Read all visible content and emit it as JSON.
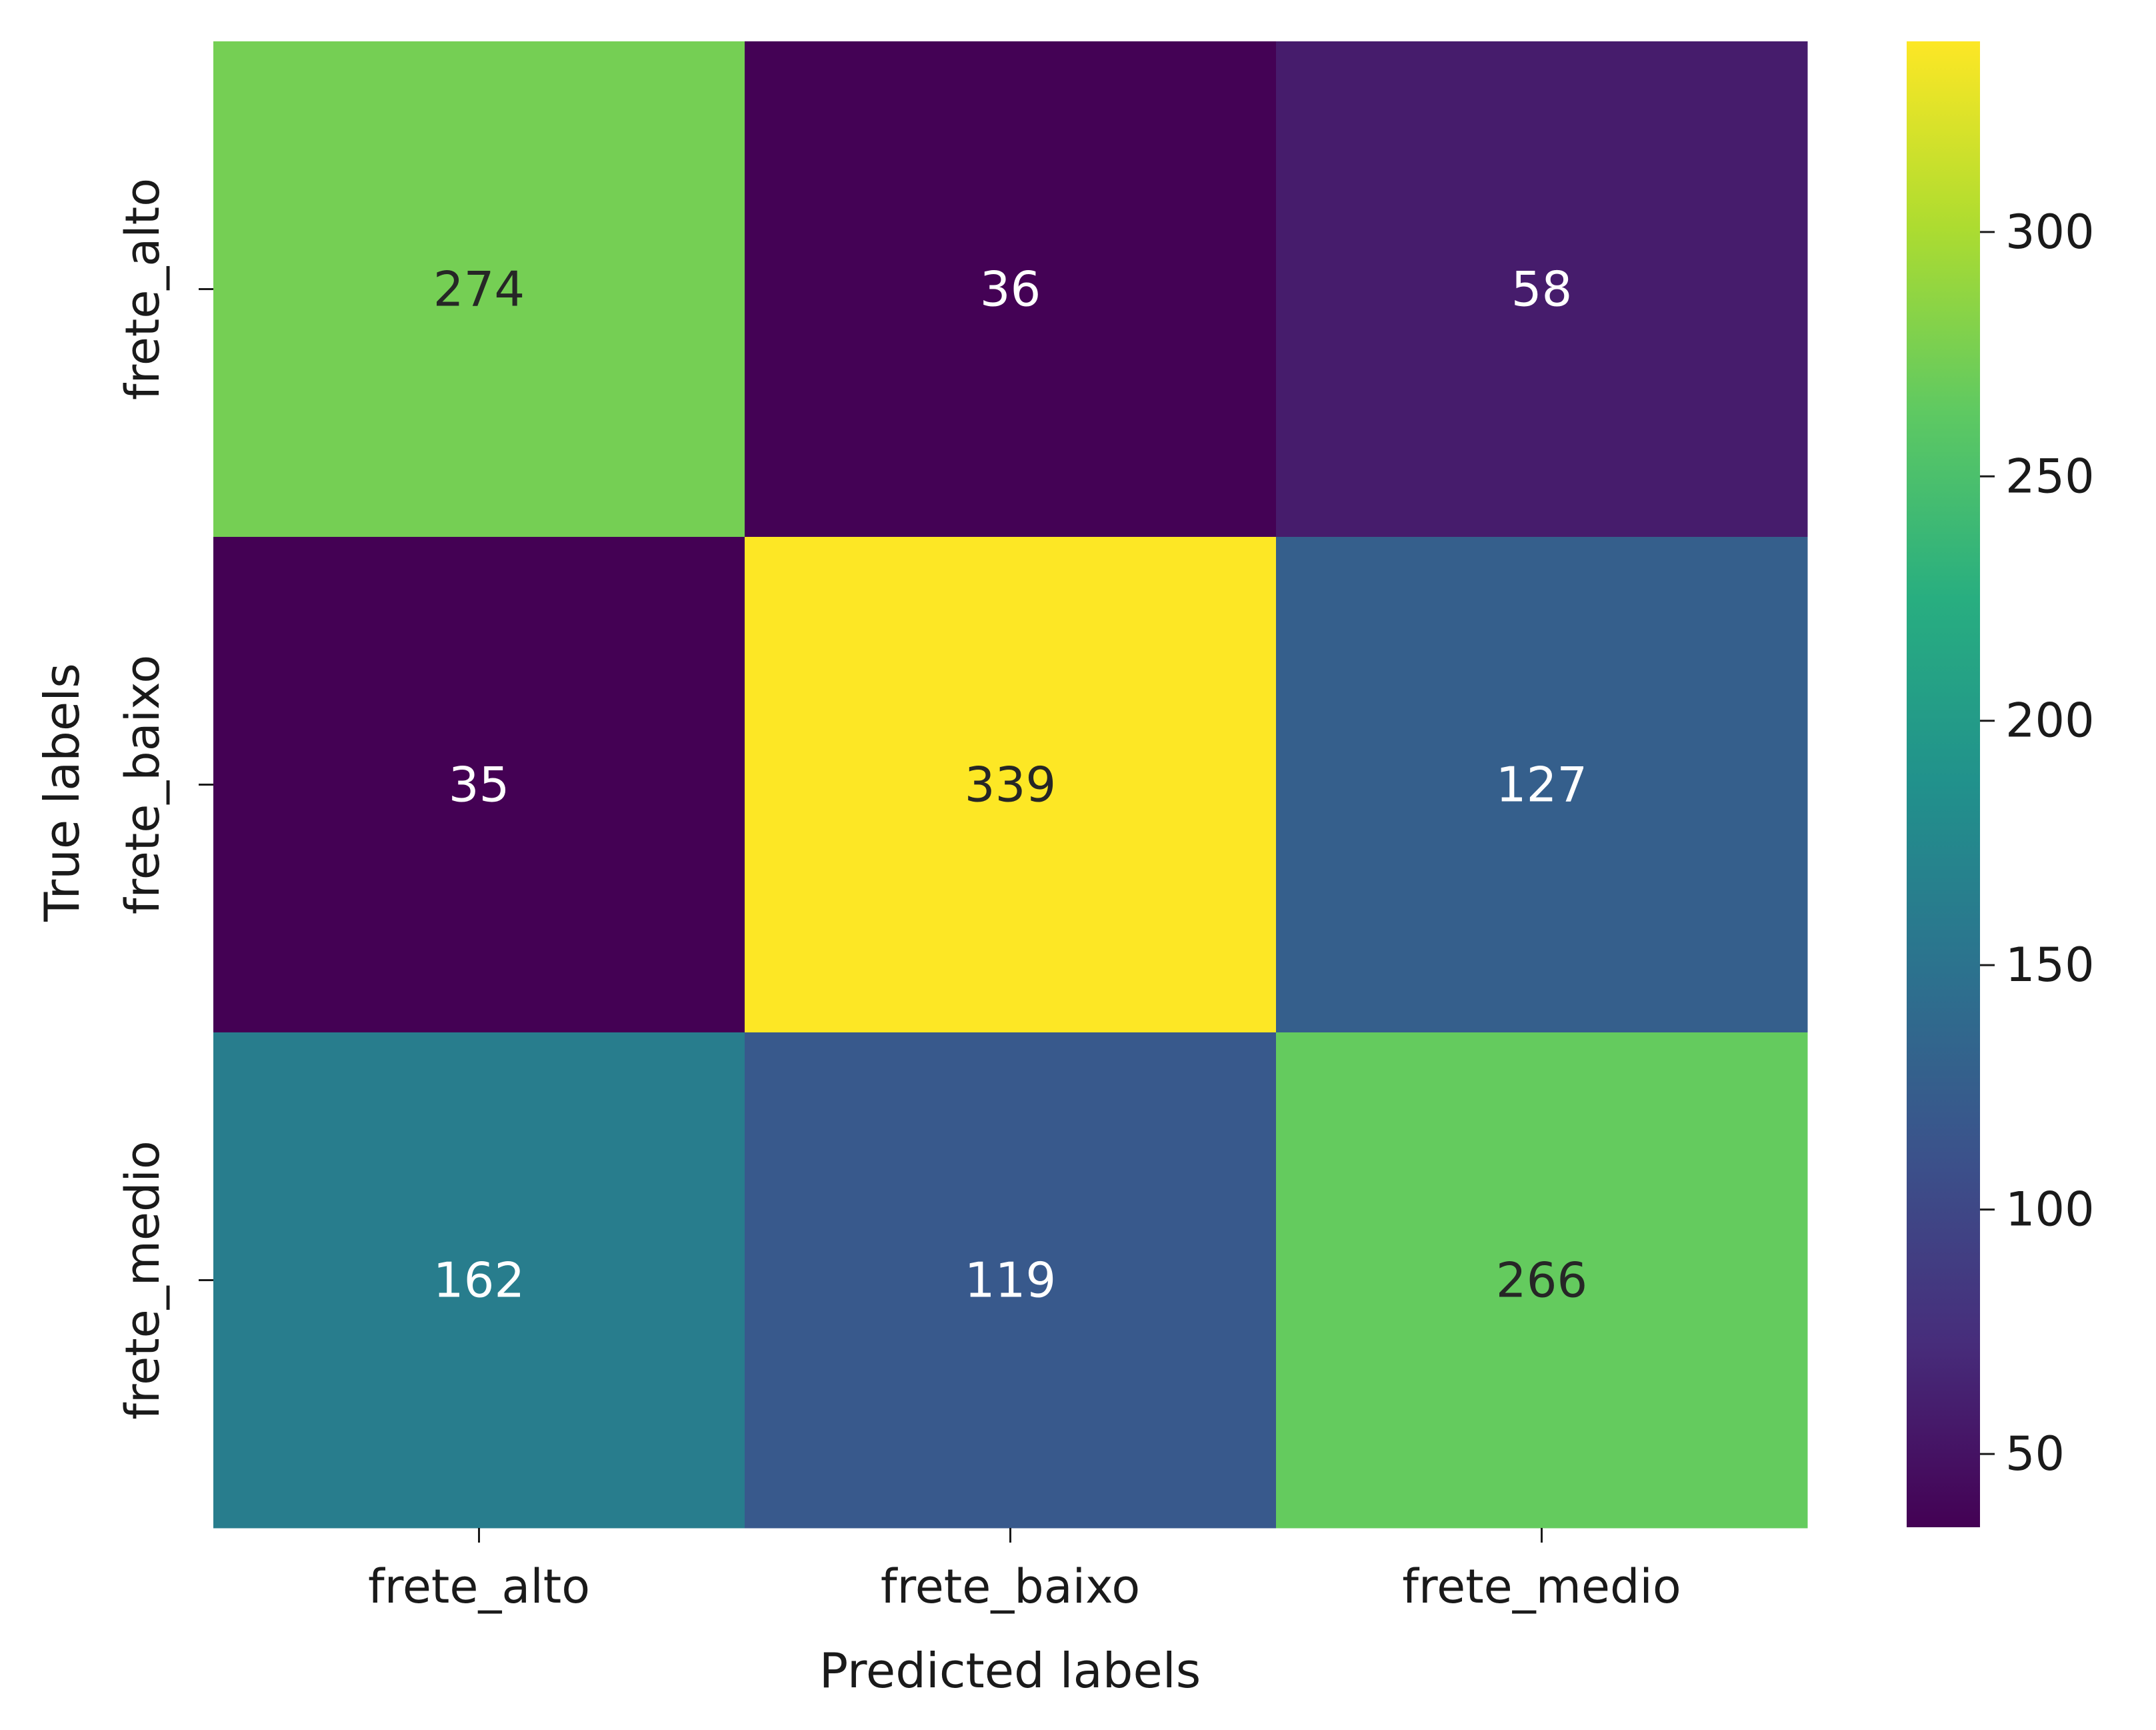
{
  "chart_data": {
    "type": "heatmap",
    "title": "",
    "xlabel": "Predicted labels",
    "ylabel": "True labels",
    "x_categories": [
      "frete_alto",
      "frete_baixo",
      "frete_medio"
    ],
    "y_categories": [
      "frete_alto",
      "frete_baixo",
      "frete_medio"
    ],
    "values": [
      [
        274,
        36,
        58
      ],
      [
        35,
        339,
        127
      ],
      [
        162,
        119,
        266
      ]
    ],
    "colormap": "viridis",
    "colorbar": {
      "vmin": 35,
      "vmax": 339,
      "ticks": [
        50,
        100,
        150,
        200,
        250,
        300
      ]
    },
    "text_colors": {
      "light": "#ffffff",
      "dark": "#262626"
    }
  }
}
